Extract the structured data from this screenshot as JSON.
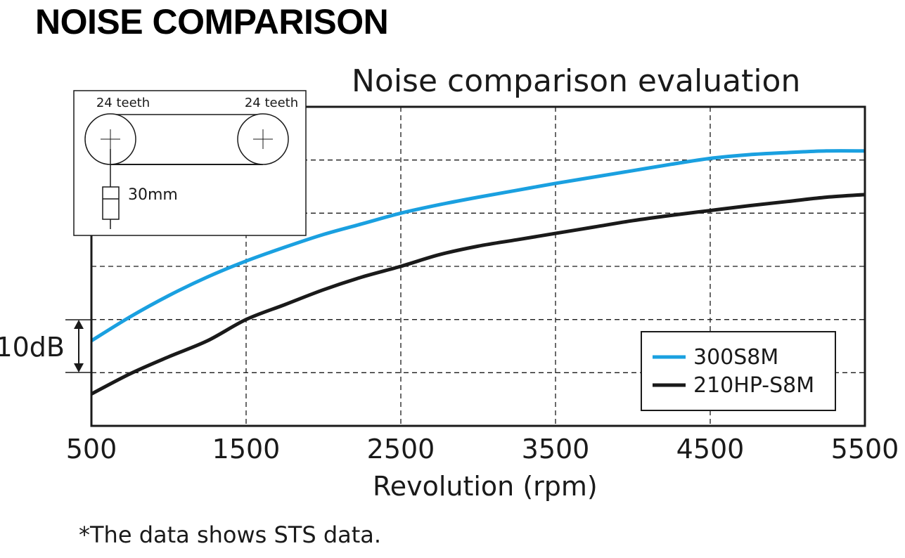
{
  "heading": "NOISE COMPARISON",
  "footnote": "*The data shows STS data.",
  "chart_data": {
    "type": "line",
    "title": "Noise comparison evaluation",
    "xlabel": "Revolution (rpm)",
    "ylabel": "",
    "x_ticks": [
      "500",
      "1500",
      "2500",
      "3500",
      "4500",
      "5500"
    ],
    "xlim": [
      500,
      5500
    ],
    "y_scale_label": "10dB",
    "ylim": [
      0,
      60
    ],
    "y_grid_step": 10,
    "grid": true,
    "legend_position": "bottom-right",
    "series": [
      {
        "name": "300S8M",
        "color": "#1aa0e0",
        "x": [
          500,
          750,
          1000,
          1250,
          1500,
          1750,
          2000,
          2250,
          2500,
          2750,
          3000,
          3250,
          3500,
          3750,
          4000,
          4250,
          4500,
          4750,
          5000,
          5250,
          5500
        ],
        "y": [
          16.0,
          20.5,
          24.5,
          28.0,
          31.0,
          33.6,
          36.0,
          38.0,
          40.0,
          41.6,
          43.0,
          44.3,
          45.6,
          46.8,
          48.0,
          49.2,
          50.3,
          51.0,
          51.4,
          51.7,
          51.7
        ]
      },
      {
        "name": "210HP-S8M",
        "color": "#1a1a1a",
        "x": [
          500,
          750,
          1000,
          1250,
          1500,
          1750,
          2000,
          2250,
          2500,
          2750,
          3000,
          3250,
          3500,
          3750,
          4000,
          4250,
          4500,
          4750,
          5000,
          5250,
          5500
        ],
        "y": [
          6.0,
          9.8,
          13.0,
          16.0,
          20.0,
          22.8,
          25.6,
          28.0,
          30.0,
          32.2,
          33.8,
          35.0,
          36.2,
          37.4,
          38.6,
          39.6,
          40.5,
          41.4,
          42.2,
          43.0,
          43.5
        ]
      }
    ]
  },
  "inset": {
    "left_pulley_label": "24 teeth",
    "right_pulley_label": "24 teeth",
    "distance_label": "30mm"
  }
}
